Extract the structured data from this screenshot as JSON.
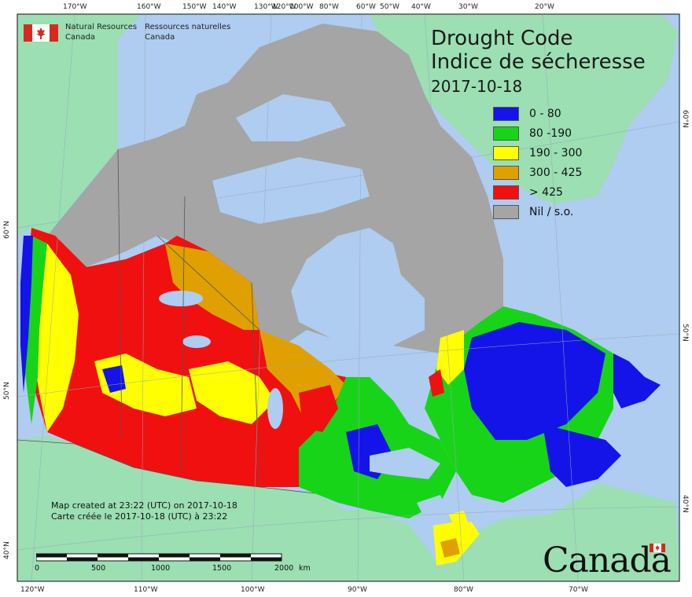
{
  "map": {
    "title_en": "Drought Code",
    "title_fr": "Indice de sécheresse",
    "date": "2017-10-18",
    "agency_en": [
      "Natural Resources",
      "Canada"
    ],
    "agency_fr": [
      "Ressources naturelles",
      "Canada"
    ],
    "created_en": "Map created at 23:22 (UTC) on 2017-10-18",
    "created_fr": "Carte créée le 2017-10-18 (UTC) à 23:22",
    "wordmark": "Canada",
    "legend": [
      {
        "label": "0 - 80",
        "color": "#1414e8"
      },
      {
        "label": "80 -190",
        "color": "#18d418"
      },
      {
        "label": "190 - 300",
        "color": "#ffff00"
      },
      {
        "label": "300 - 425",
        "color": "#e0a000"
      },
      {
        "label": "> 425",
        "color": "#f01010"
      },
      {
        "label": "Nil / s.o.",
        "color": "#a5a5a5"
      }
    ],
    "colors": {
      "ocean": "#aecdf0",
      "foreign_land": "#9bdfb3",
      "no_data": "#a5a5a5"
    },
    "top_longitudes": [
      "170°W",
      "160°W",
      "150°W",
      "140°W",
      "130°W",
      "120°W",
      "100°W",
      "80°W",
      "60°W",
      "50°W",
      "40°W",
      "30°W",
      "20°W"
    ],
    "bottom_longitudes": [
      "120°W",
      "110°W",
      "100°W",
      "90°W",
      "80°W",
      "70°W"
    ],
    "left_latitudes": [
      "60°N",
      "50°N",
      "40°N"
    ],
    "right_latitudes": [
      "60°N",
      "50°N",
      "40°N"
    ],
    "scale": {
      "ticks": [
        "0",
        "500",
        "1000",
        "1500",
        "2000"
      ],
      "unit": "km"
    }
  }
}
